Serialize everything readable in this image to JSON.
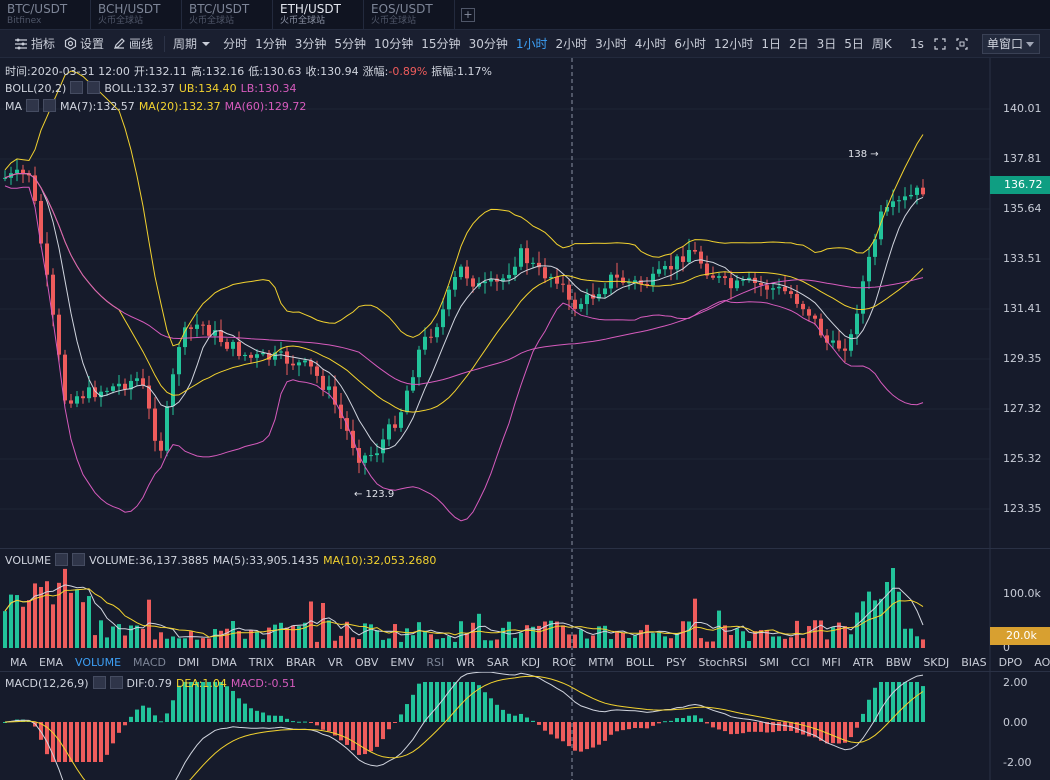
{
  "tabs": [
    {
      "pair": "BTC/USDT",
      "exchange": "Bitfinex",
      "active": false
    },
    {
      "pair": "BCH/USDT",
      "exchange": "火币全球站",
      "active": false
    },
    {
      "pair": "BTC/USDT",
      "exchange": "火币全球站",
      "active": false
    },
    {
      "pair": "ETH/USDT",
      "exchange": "火币全球站",
      "active": true
    },
    {
      "pair": "EOS/USDT",
      "exchange": "火币全球站",
      "active": false
    }
  ],
  "tab_add_label": "+",
  "toolbar": {
    "indicator_label": "指标",
    "settings_label": "设置",
    "draw_label": "画线",
    "period_label": "周期",
    "intervals": [
      "分时",
      "1分钟",
      "3分钟",
      "5分钟",
      "10分钟",
      "15分钟",
      "30分钟",
      "1小时",
      "2小时",
      "3小时",
      "4小时",
      "6小时",
      "12小时",
      "1日",
      "2日",
      "3日",
      "5日",
      "周K"
    ],
    "active_interval": "1小时",
    "speed_label": "1s",
    "window_label": "单窗口"
  },
  "ohlc_info": {
    "time": "时间:2020-03-31 12:00",
    "open": "开:132.11",
    "high": "高:132.16",
    "low": "低:130.63",
    "close": "收:130.94",
    "change_label": "涨幅:",
    "change_value": "-0.89%",
    "amplitude": "振幅:1.17%"
  },
  "boll_info": {
    "name": "BOLL(20,2)",
    "boll": "BOLL:132.37",
    "ub": "UB:134.40",
    "lb": "LB:130.34"
  },
  "ma_info": {
    "name": "MA",
    "ma7": "MA(7):132.57",
    "ma20": "MA(20):132.37",
    "ma60": "MA(60):129.72"
  },
  "price_axis": [
    "140.01",
    "137.81",
    "135.64",
    "133.51",
    "131.41",
    "129.35",
    "127.32",
    "125.32",
    "123.35"
  ],
  "current_price": "136.72",
  "annotations": {
    "high_label": "138 →",
    "low_label": "← 123.9"
  },
  "volume_info": {
    "name": "VOLUME",
    "volume": "VOLUME:36,137.3885",
    "ma5": "MA(5):33,905.1435",
    "ma10": "MA(10):32,053.2680"
  },
  "volume_axis": [
    "100.0k",
    "0"
  ],
  "current_volume": "20.0k",
  "indicator_tabs": [
    "MA",
    "EMA",
    "VOLUME",
    "MACD",
    "DMI",
    "DMA",
    "TRIX",
    "BRAR",
    "VR",
    "OBV",
    "EMV",
    "RSI",
    "WR",
    "SAR",
    "KDJ",
    "ROC",
    "MTM",
    "BOLL",
    "PSY",
    "StochRSI",
    "SMI",
    "CCI",
    "MFI",
    "ATR",
    "BBW",
    "SKDJ",
    "BIAS",
    "DPO",
    "AO"
  ],
  "active_indicator": "VOLUME",
  "macd_info": {
    "name": "MACD(12,26,9)",
    "dif": "DIF:0.79",
    "dea": "DEA:1.04",
    "macd": "MACD:-0.51"
  },
  "macd_axis": [
    "2.00",
    "0.00",
    "-2.00"
  ],
  "colors": {
    "up": "#22c39a",
    "down": "#ee5c5c",
    "ma7": "#d0d4de",
    "ma20": "#f2d22f",
    "ma60": "#d65bbd",
    "accent": "#3d9ff5"
  }
}
